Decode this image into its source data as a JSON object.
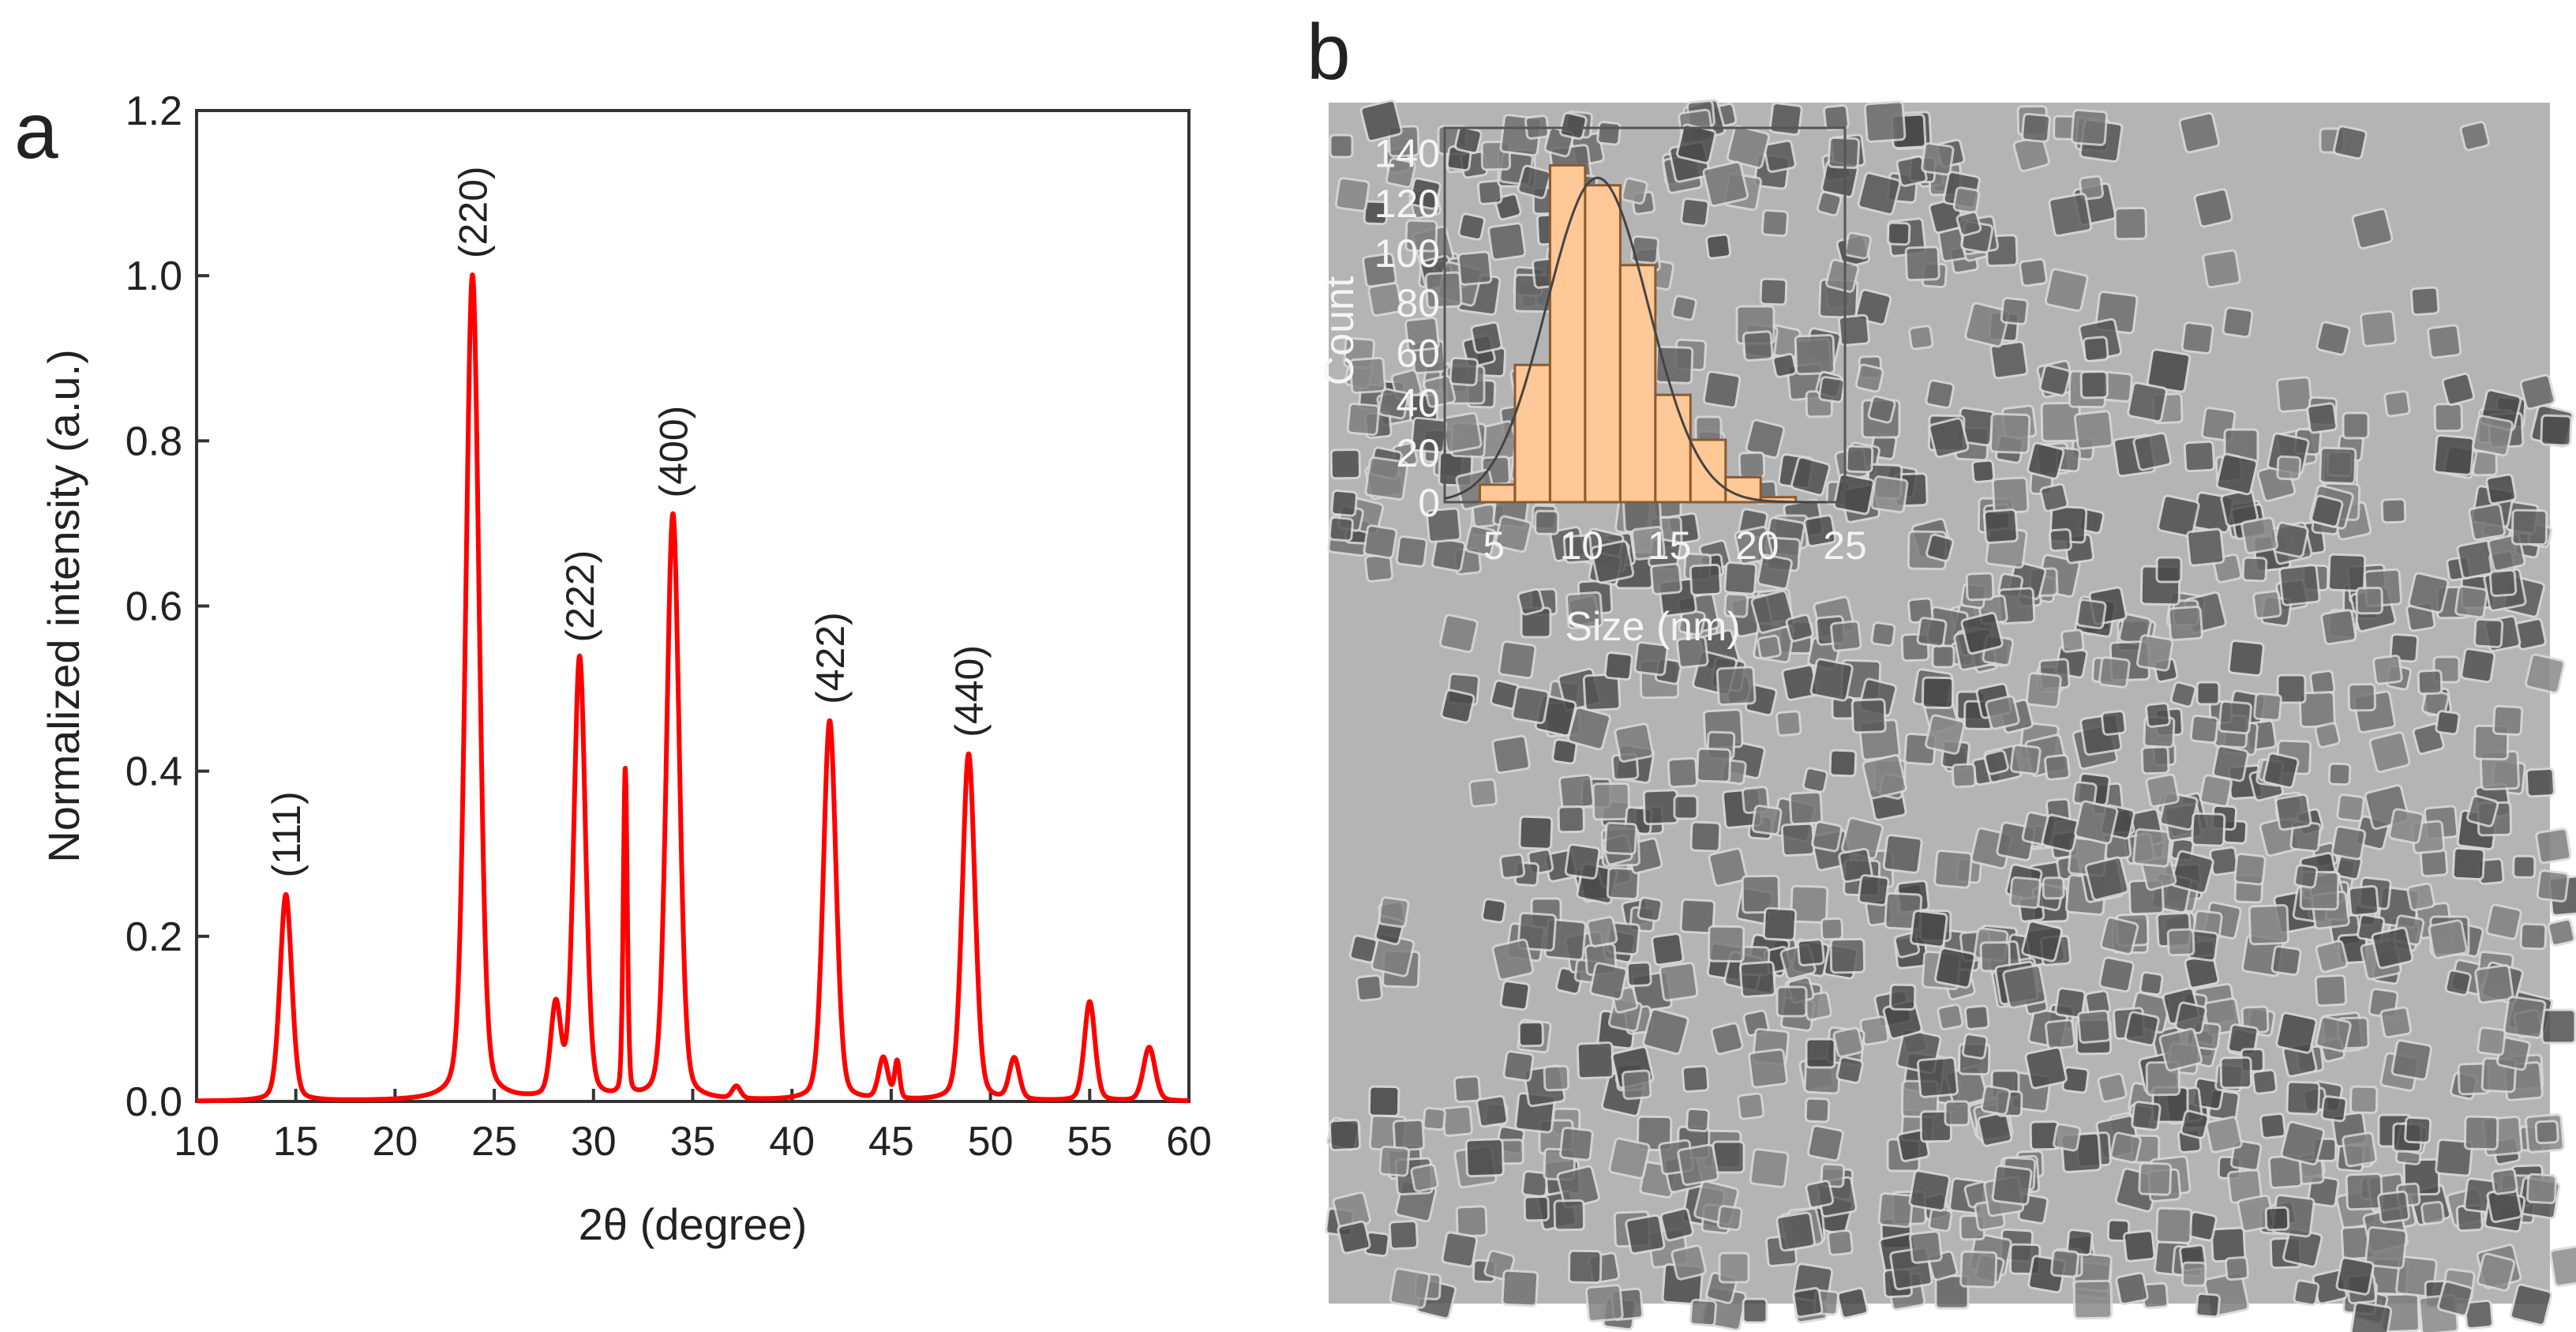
{
  "panel_labels": {
    "a": "a",
    "b": "b"
  },
  "colors": {
    "curve": "#ff0000",
    "bars": "#ffc896",
    "bar_edge": "#8a5a30",
    "tem_bg": "#b4b4b4"
  },
  "chart_data": [
    {
      "type": "line",
      "title": "",
      "xlabel": "2θ (degree)",
      "ylabel": "Normalized intensity (a.u.)",
      "xlim": [
        10,
        60
      ],
      "ylim": [
        0,
        1.2
      ],
      "xticks": [
        "10",
        "15",
        "20",
        "25",
        "30",
        "35",
        "40",
        "45",
        "50",
        "55",
        "60"
      ],
      "yticks": [
        "0.0",
        "0.2",
        "0.4",
        "0.6",
        "0.8",
        "1.0",
        "1.2"
      ],
      "grid": false,
      "peaks": [
        {
          "x": 14.5,
          "y": 0.25,
          "w": 0.35
        },
        {
          "x": 23.9,
          "y": 1.0,
          "w": 0.4
        },
        {
          "x": 28.1,
          "y": 0.11,
          "w": 0.3
        },
        {
          "x": 29.3,
          "y": 0.535,
          "w": 0.35
        },
        {
          "x": 31.6,
          "y": 0.395,
          "w": 0.12
        },
        {
          "x": 34.0,
          "y": 0.71,
          "w": 0.38
        },
        {
          "x": 37.2,
          "y": 0.015,
          "w": 0.25
        },
        {
          "x": 41.9,
          "y": 0.46,
          "w": 0.38
        },
        {
          "x": 44.6,
          "y": 0.05,
          "w": 0.28
        },
        {
          "x": 45.3,
          "y": 0.045,
          "w": 0.15
        },
        {
          "x": 48.9,
          "y": 0.42,
          "w": 0.38
        },
        {
          "x": 51.2,
          "y": 0.05,
          "w": 0.3
        },
        {
          "x": 55.0,
          "y": 0.12,
          "w": 0.32
        },
        {
          "x": 58.0,
          "y": 0.065,
          "w": 0.35
        }
      ],
      "annotations": [
        {
          "text": "(111)",
          "x": 14.5,
          "y": 0.25
        },
        {
          "text": "(220)",
          "x": 23.9,
          "y": 1.0
        },
        {
          "text": "(222)",
          "x": 29.3,
          "y": 0.535
        },
        {
          "text": "(400)",
          "x": 34.0,
          "y": 0.71
        },
        {
          "text": "(422)",
          "x": 41.9,
          "y": 0.46
        },
        {
          "text": "(440)",
          "x": 48.9,
          "y": 0.42
        }
      ]
    },
    {
      "type": "bar",
      "title": "",
      "xlabel": "Size (nm)",
      "ylabel": "Count",
      "xlim": [
        2.2,
        25
      ],
      "ylim": [
        0,
        150
      ],
      "xticks": [
        "5",
        "10",
        "15",
        "20",
        "25"
      ],
      "yticks": [
        "0",
        "20",
        "40",
        "60",
        "80",
        "100",
        "120",
        "140"
      ],
      "bin_width": 2,
      "bin_starts": [
        4.2,
        6.2,
        8.2,
        10.2,
        12.2,
        14.2,
        16.2,
        18.2,
        20.2
      ],
      "values": [
        7,
        55,
        135,
        127,
        95,
        43,
        25,
        10,
        2
      ],
      "fit": {
        "type": "gaussian",
        "center": 10.9,
        "sigma": 2.9,
        "peak": 130
      }
    }
  ]
}
